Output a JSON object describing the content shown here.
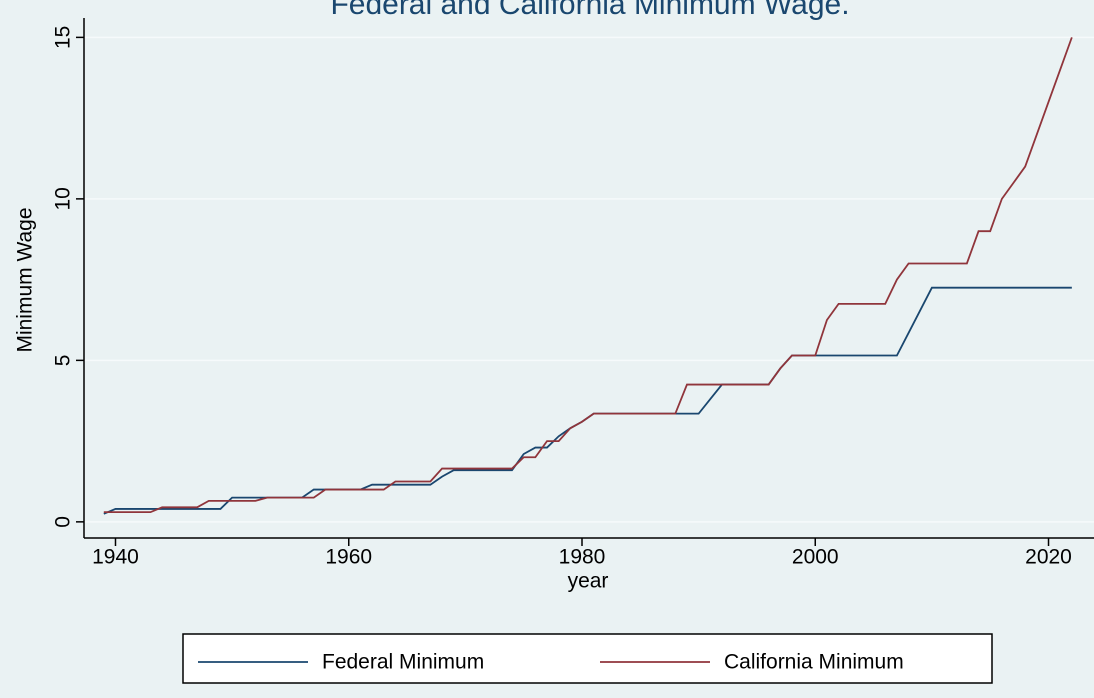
{
  "chart_data": {
    "type": "line",
    "title": "Federal and California Minimum Wage.",
    "x_label": "year",
    "y_label": "Minimum Wage",
    "x": [
      1939,
      1940,
      1941,
      1942,
      1943,
      1944,
      1945,
      1946,
      1947,
      1948,
      1949,
      1950,
      1951,
      1952,
      1953,
      1954,
      1955,
      1956,
      1957,
      1958,
      1959,
      1960,
      1961,
      1962,
      1963,
      1964,
      1965,
      1966,
      1967,
      1968,
      1969,
      1970,
      1971,
      1972,
      1973,
      1974,
      1975,
      1976,
      1977,
      1978,
      1979,
      1980,
      1981,
      1982,
      1983,
      1984,
      1985,
      1986,
      1987,
      1988,
      1989,
      1990,
      1991,
      1992,
      1993,
      1994,
      1995,
      1996,
      1997,
      1998,
      1999,
      2000,
      2001,
      2002,
      2003,
      2004,
      2005,
      2006,
      2007,
      2008,
      2009,
      2010,
      2011,
      2012,
      2013,
      2014,
      2015,
      2016,
      2017,
      2018,
      2019,
      2020,
      2021,
      2022
    ],
    "series": [
      {
        "name": "Federal Minimum",
        "color": "#1a476f",
        "values": [
          0.25,
          0.4,
          0.4,
          0.4,
          0.4,
          0.4,
          0.4,
          0.4,
          0.4,
          0.4,
          0.4,
          0.75,
          0.75,
          0.75,
          0.75,
          0.75,
          0.75,
          0.75,
          1.0,
          1.0,
          1.0,
          1.0,
          1.0,
          1.15,
          1.15,
          1.15,
          1.15,
          1.15,
          1.15,
          1.4,
          1.6,
          1.6,
          1.6,
          1.6,
          1.6,
          1.6,
          2.1,
          2.3,
          2.3,
          2.65,
          2.9,
          3.1,
          3.35,
          3.35,
          3.35,
          3.35,
          3.35,
          3.35,
          3.35,
          3.35,
          3.35,
          3.35,
          3.8,
          4.25,
          4.25,
          4.25,
          4.25,
          4.25,
          4.75,
          5.15,
          5.15,
          5.15,
          5.15,
          5.15,
          5.15,
          5.15,
          5.15,
          5.15,
          5.15,
          5.85,
          6.55,
          7.25,
          7.25,
          7.25,
          7.25,
          7.25,
          7.25,
          7.25,
          7.25,
          7.25,
          7.25,
          7.25,
          7.25,
          7.25
        ]
      },
      {
        "name": "California Minimum",
        "color": "#90353b",
        "values": [
          0.3,
          0.3,
          0.3,
          0.3,
          0.3,
          0.45,
          0.45,
          0.45,
          0.45,
          0.65,
          0.65,
          0.65,
          0.65,
          0.65,
          0.75,
          0.75,
          0.75,
          0.75,
          0.75,
          1.0,
          1.0,
          1.0,
          1.0,
          1.0,
          1.0,
          1.25,
          1.25,
          1.25,
          1.25,
          1.65,
          1.65,
          1.65,
          1.65,
          1.65,
          1.65,
          1.65,
          2.0,
          2.0,
          2.5,
          2.5,
          2.9,
          3.1,
          3.35,
          3.35,
          3.35,
          3.35,
          3.35,
          3.35,
          3.35,
          3.35,
          4.25,
          4.25,
          4.25,
          4.25,
          4.25,
          4.25,
          4.25,
          4.25,
          4.75,
          5.15,
          5.15,
          5.15,
          6.25,
          6.75,
          6.75,
          6.75,
          6.75,
          6.75,
          7.5,
          8.0,
          8.0,
          8.0,
          8.0,
          8.0,
          8.0,
          9.0,
          9.0,
          10.0,
          10.5,
          11.0,
          12.0,
          13.0,
          14.0,
          15.0
        ]
      }
    ],
    "xlim": [
      1937.3,
      2023.9
    ],
    "xticks": [
      1940,
      1960,
      1980,
      2000,
      2020
    ],
    "ylim": [
      -0.5,
      15.6
    ],
    "yticks": [
      0,
      5,
      10,
      15
    ],
    "grid": true,
    "legend": "bottom"
  }
}
